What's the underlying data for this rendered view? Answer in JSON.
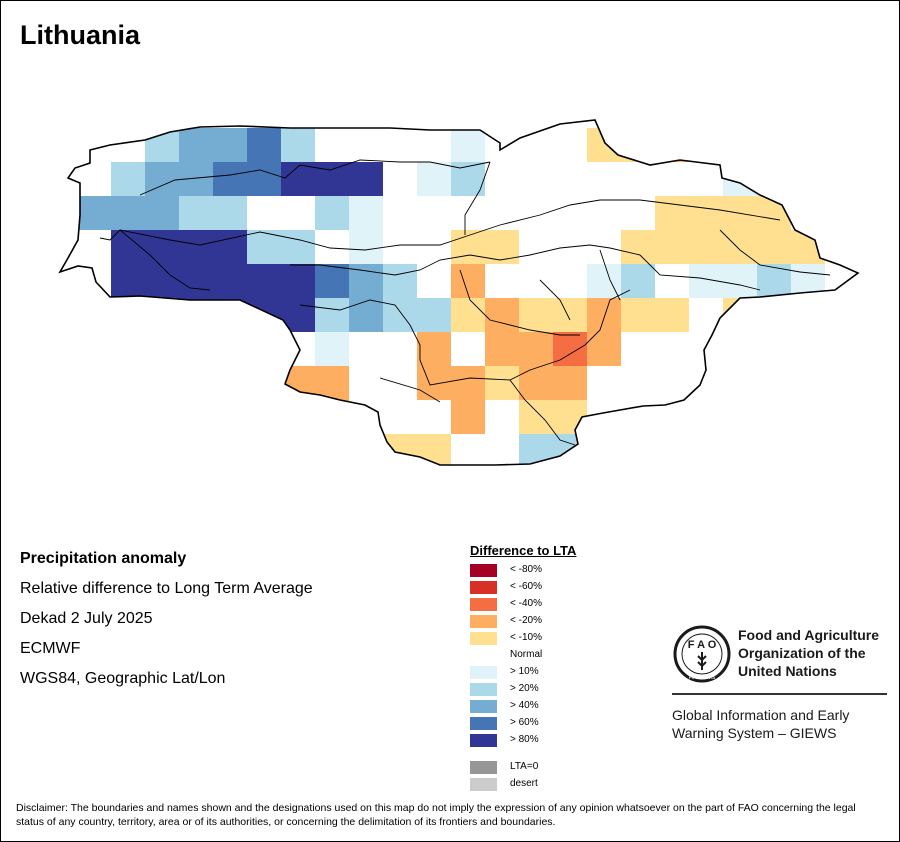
{
  "map": {
    "title": "Lithuania",
    "colors": {
      "ocean": "#ffffff",
      "outline": "#000000"
    }
  },
  "info": {
    "heading": "Precipitation anomaly",
    "line1": "Relative difference to Long Term Average",
    "line2": "Dekad 2 July 2025",
    "line3": "ECMWF",
    "line4": "WGS84, Geographic Lat/Lon"
  },
  "legend": {
    "title": "Difference to LTA",
    "items": [
      {
        "label": "< -80%",
        "color": "#a50026"
      },
      {
        "label": "< -60%",
        "color": "#d73027"
      },
      {
        "label": "< -40%",
        "color": "#f46d43"
      },
      {
        "label": "< -20%",
        "color": "#fdae61"
      },
      {
        "label": "< -10%",
        "color": "#fee090"
      },
      {
        "label": "Normal",
        "color": "#ffffff"
      },
      {
        "label": "> 10%",
        "color": "#e0f3f8"
      },
      {
        "label": "> 20%",
        "color": "#abd9e9"
      },
      {
        "label": "> 40%",
        "color": "#74add1"
      },
      {
        "label": "> 60%",
        "color": "#4575b4"
      },
      {
        "label": "> 80%",
        "color": "#313695"
      }
    ],
    "extra": [
      {
        "label": "LTA=0",
        "color": "#969696"
      },
      {
        "label": "desert",
        "color": "#cccccc"
      }
    ]
  },
  "fao": {
    "org_name": "Food and Agriculture Organization of the United Nations",
    "logo_text": "FAO",
    "logo_motto": "FIAT PANIS",
    "system_name": "Global Information and Early Warning System – GIEWS"
  },
  "disclaimer": "Disclaimer: The boundaries and names shown and the designations used on this map do not imply the expression of any opinion whatsoever on the part of FAO concerning the legal status of any country, territory, area or of its authorities, or concerning the delimitation of its frontiers and boundaries."
}
